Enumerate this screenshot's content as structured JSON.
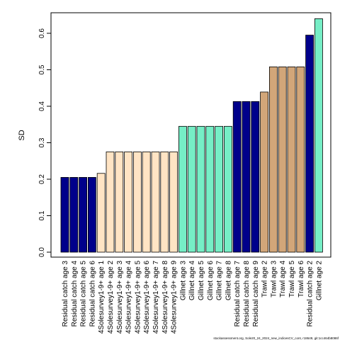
{
  "chart_data": {
    "type": "bar",
    "title": "",
    "xlabel": "",
    "ylabel": "SD",
    "ylim": [
      0,
      0.64
    ],
    "yticks": [
      "0.0",
      "0.1",
      "0.2",
      "0.3",
      "0.4",
      "0.5",
      "0.6"
    ],
    "ytick_values": [
      0,
      0.1,
      0.2,
      0.3,
      0.4,
      0.5,
      0.6
    ],
    "grid": false,
    "categories": [
      "Residual catch age 3",
      "Residual catch age 4",
      "Residual catch age 5",
      "Residual catch age 6",
      "4Solesurvey1-9+ age 1",
      "4Solesurvey1-9+ age 2",
      "4Solesurvey1-9+ age 3",
      "4Solesurvey1-9+ age 4",
      "4Solesurvey1-9+ age 5",
      "4Solesurvey1-9+ age 6",
      "4Solesurvey1-9+ age 7",
      "4Solesurvey1-9+ age 8",
      "4Solesurvey1-9+ age 9",
      "Gillnet age 3",
      "Gillnet age 4",
      "Gillnet age 5",
      "Gillnet age 6",
      "Gillnet age 7",
      "Gillnet age 8",
      "Residual catch age 7",
      "Residual catch age 8",
      "Residual catch age 9",
      "Trawl age 2",
      "Trawl age 3",
      "Trawl age 4",
      "Trawl age 5",
      "Trawl age 6",
      "Residual catch age 2",
      "Gillnet age 2"
    ],
    "values": [
      0.205,
      0.205,
      0.205,
      0.205,
      0.216,
      0.275,
      0.275,
      0.275,
      0.275,
      0.275,
      0.275,
      0.275,
      0.275,
      0.345,
      0.345,
      0.345,
      0.345,
      0.345,
      0.345,
      0.413,
      0.413,
      0.413,
      0.439,
      0.508,
      0.508,
      0.508,
      0.508,
      0.595,
      0.64
    ],
    "bar_colors": [
      "#00008B",
      "#00008B",
      "#00008B",
      "#00008B",
      "#FFE4C4",
      "#FFE4C4",
      "#FFE4C4",
      "#FFE4C4",
      "#FFE4C4",
      "#FFE4C4",
      "#FFE4C4",
      "#FFE4C4",
      "#FFE4C4",
      "#76EEC6",
      "#76EEC6",
      "#76EEC6",
      "#76EEC6",
      "#76EEC6",
      "#76EEC6",
      "#00008B",
      "#00008B",
      "#00008B",
      "#D2A679",
      "#D2A679",
      "#D2A679",
      "#D2A679",
      "#D2A679",
      "#00008B",
      "#76EEC6"
    ]
  },
  "footnote": "stockassessment.org, Sole20_24_2024_new_indicesCV_cont, r18649, git:1cc464b8086f"
}
